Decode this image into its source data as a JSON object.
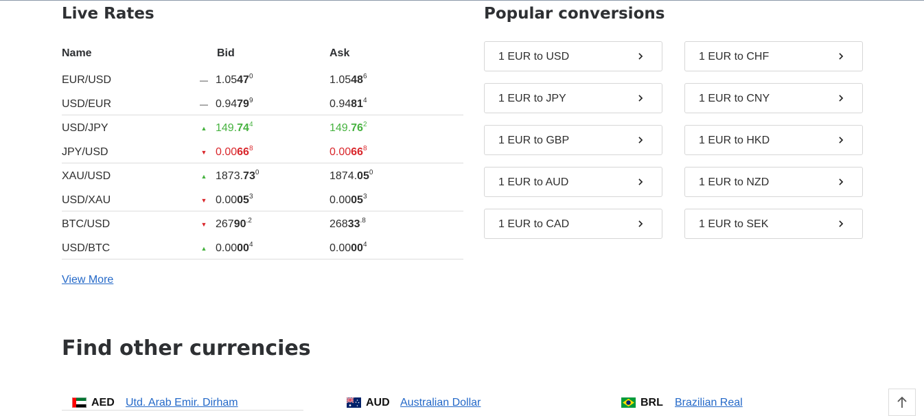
{
  "live_rates": {
    "title": "Live Rates",
    "headers": {
      "name": "Name",
      "bid": "Bid",
      "ask": "Ask"
    },
    "rows": [
      {
        "name": "EUR/USD",
        "trend": "flat",
        "bid": {
          "pre": "1.05",
          "bold": "47",
          "sup": "0"
        },
        "ask": {
          "pre": "1.05",
          "bold": "48",
          "sup": "6"
        }
      },
      {
        "name": "USD/EUR",
        "trend": "flat",
        "bid": {
          "pre": "0.94",
          "bold": "79",
          "sup": "9"
        },
        "ask": {
          "pre": "0.94",
          "bold": "81",
          "sup": "4"
        }
      },
      {
        "name": "USD/JPY",
        "trend": "up",
        "bid": {
          "pre": "149.",
          "bold": "74",
          "sup": "4"
        },
        "ask": {
          "pre": "149.",
          "bold": "76",
          "sup": "2"
        }
      },
      {
        "name": "JPY/USD",
        "trend": "down",
        "bid": {
          "pre": "0.00",
          "bold": "66",
          "sup": "8"
        },
        "ask": {
          "pre": "0.00",
          "bold": "66",
          "sup": "8"
        }
      },
      {
        "name": "XAU/USD",
        "trend": "up",
        "bid": {
          "pre": "1873.",
          "bold": "73",
          "sup": "0"
        },
        "ask": {
          "pre": "1874.",
          "bold": "05",
          "sup": "0"
        }
      },
      {
        "name": "USD/XAU",
        "trend": "down",
        "bid": {
          "pre": "0.00",
          "bold": "05",
          "sup": "3"
        },
        "ask": {
          "pre": "0.00",
          "bold": "05",
          "sup": "3"
        }
      },
      {
        "name": "BTC/USD",
        "trend": "down",
        "bid": {
          "pre": "267",
          "bold": "90",
          "sup": ".2"
        },
        "ask": {
          "pre": "268",
          "bold": "33",
          "sup": ".8"
        }
      },
      {
        "name": "USD/BTC",
        "trend": "up",
        "bid": {
          "pre": "0.00",
          "bold": "00",
          "sup": "4"
        },
        "ask": {
          "pre": "0.00",
          "bold": "00",
          "sup": "4"
        }
      }
    ],
    "view_more": "View More"
  },
  "popular": {
    "title": "Popular conversions",
    "items": [
      "1 EUR to USD",
      "1 EUR to CHF",
      "1 EUR to JPY",
      "1 EUR to CNY",
      "1 EUR to GBP",
      "1 EUR to HKD",
      "1 EUR to AUD",
      "1 EUR to NZD",
      "1 EUR to CAD",
      "1 EUR to SEK"
    ]
  },
  "find_other": {
    "title": "Find other currencies",
    "currencies": [
      {
        "code": "AED",
        "name": "Utd. Arab Emir. Dirham",
        "flag": "uae-flag-icon"
      },
      {
        "code": "AUD",
        "name": "Australian Dollar",
        "flag": "australia-flag-icon"
      },
      {
        "code": "BRL",
        "name": "Brazilian Real",
        "flag": "brazil-flag-icon"
      }
    ]
  },
  "colors": {
    "up": "#46b23f",
    "down": "#d9262b",
    "link": "#2368c8",
    "heading": "#2e3033"
  },
  "icons": {
    "trend_flat": "flat-dash-icon",
    "trend_up": "up-triangle-icon",
    "trend_down": "down-triangle-icon",
    "chevron": "chevron-right-icon",
    "scroll_top": "arrow-up-icon"
  }
}
